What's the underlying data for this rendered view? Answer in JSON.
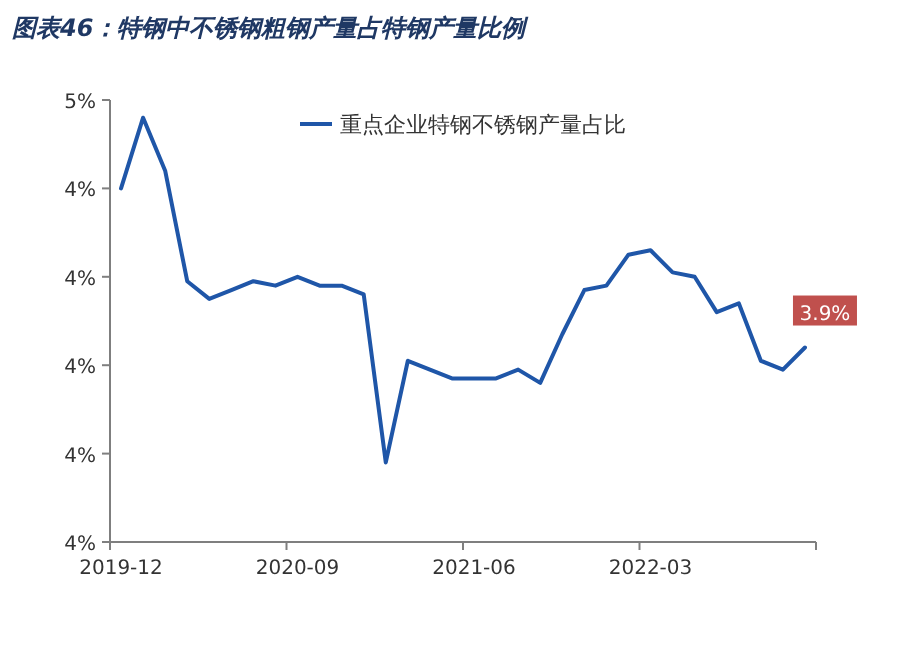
{
  "chart_data": {
    "type": "line",
    "title": "图表46：特钢中不锈钢粗钢产量占特钢产量比例",
    "categories": [
      "2019-12",
      null,
      null,
      null,
      null,
      null,
      null,
      null,
      "2020-09",
      null,
      null,
      null,
      null,
      null,
      null,
      null,
      "2021-06",
      null,
      null,
      null,
      null,
      null,
      null,
      null,
      "2022-03",
      null,
      null,
      null,
      null,
      null,
      null,
      null
    ],
    "series": [
      {
        "name": "重点企业特钢不锈钢产量占比",
        "color": "#1f56a8",
        "values": [
          4.3,
          4.46,
          4.34,
          4.09,
          4.05,
          4.07,
          4.09,
          4.08,
          4.1,
          4.08,
          4.08,
          4.06,
          3.68,
          3.91,
          3.89,
          3.87,
          3.87,
          3.87,
          3.89,
          3.86,
          3.97,
          4.07,
          4.08,
          4.15,
          4.16,
          4.11,
          4.1,
          4.02,
          4.04,
          3.91,
          3.89,
          3.94
        ],
        "value_labels": [
          null,
          null,
          null,
          null,
          null,
          null,
          null,
          null,
          null,
          null,
          null,
          null,
          null,
          null,
          null,
          null,
          null,
          null,
          null,
          null,
          null,
          null,
          null,
          null,
          null,
          null,
          null,
          null,
          null,
          null,
          null,
          "3.9%"
        ]
      }
    ],
    "ylim": [
      3.5,
      4.5
    ],
    "yticks": [
      {
        "value": 3.5,
        "label": "4%"
      },
      {
        "value": 3.7,
        "label": "4%"
      },
      {
        "value": 3.9,
        "label": "4%"
      },
      {
        "value": 4.1,
        "label": "4%"
      },
      {
        "value": 4.3,
        "label": "4%"
      },
      {
        "value": 4.5,
        "label": "5%"
      }
    ],
    "grid": false,
    "legend": "top",
    "marker": "none",
    "line_style": "solid"
  }
}
